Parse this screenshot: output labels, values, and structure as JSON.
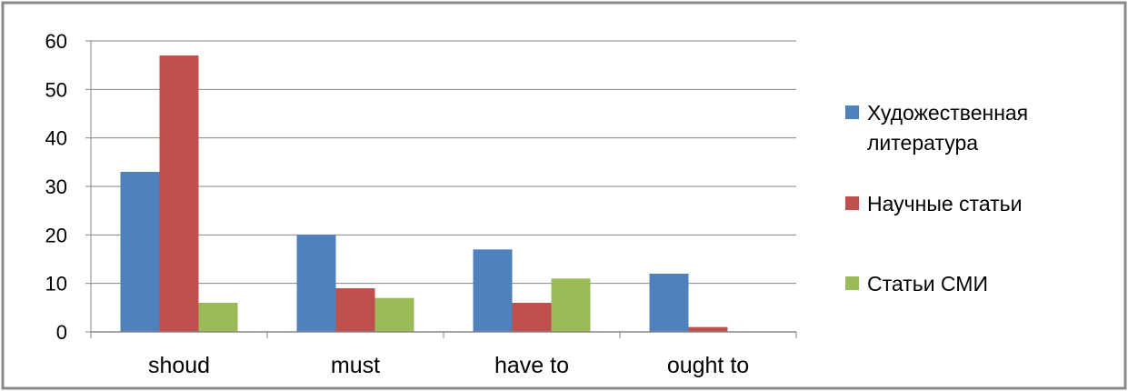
{
  "chart_data": {
    "type": "bar",
    "categories": [
      "shoud",
      "must",
      "have to",
      "ought to"
    ],
    "series": [
      {
        "name": "Художественная литература",
        "color": "#4F81BD",
        "values": [
          33,
          20,
          17,
          12
        ]
      },
      {
        "name": "Научные статьи",
        "color": "#C0504D",
        "values": [
          57,
          9,
          6,
          1
        ]
      },
      {
        "name": "Статьи СМИ",
        "color": "#9BBB59",
        "values": [
          6,
          7,
          11,
          0
        ]
      }
    ],
    "yticks": [
      0,
      10,
      20,
      30,
      40,
      50,
      60
    ],
    "ylim": [
      0,
      60
    ],
    "grid": true,
    "legend_position": "right"
  },
  "legend": {
    "items": [
      {
        "line1": "Художественная",
        "line2": "литература",
        "color": "#4F81BD"
      },
      {
        "line1": "Научные статьи",
        "line2": "",
        "color": "#C0504D"
      },
      {
        "line1": "Статьи СМИ",
        "line2": "",
        "color": "#9BBB59"
      }
    ]
  }
}
